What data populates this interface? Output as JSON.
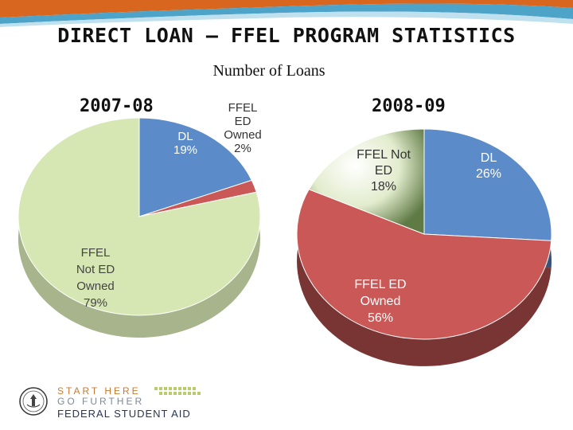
{
  "title": "DIRECT LOAN – FFEL PROGRAM STATISTICS",
  "subtitle": "Number of Loans",
  "colors": {
    "swoosh_orange": "#d8661e",
    "swoosh_blue": "#4ea3c9",
    "dl": "#5b8bc9",
    "ffel_ed_owned": "#c95856",
    "ffel_not_ed": "#d6e7b3",
    "ffel_not_ed_small_red": "#c95856",
    "rim_2007": "#b5c48f"
  },
  "chart_data": [
    {
      "type": "pie",
      "title": "2007-08",
      "slices": [
        {
          "label_lines": [
            "DL",
            "19%"
          ],
          "value": 19,
          "color": "#5b8bc9"
        },
        {
          "label_lines": [
            "FFEL",
            "ED",
            "Owned",
            "2%"
          ],
          "value": 2,
          "color": "#c95856"
        },
        {
          "label_lines": [
            "FFEL",
            "Not ED",
            "Owned",
            "79%"
          ],
          "value": 79,
          "color": "#d6e7b3"
        }
      ]
    },
    {
      "type": "pie",
      "title": "2008-09",
      "slices": [
        {
          "label_lines": [
            "DL",
            "26%"
          ],
          "value": 26,
          "color": "#5b8bc9"
        },
        {
          "label_lines": [
            "FFEL ED",
            "Owned",
            "56%"
          ],
          "value": 56,
          "color": "#c95856"
        },
        {
          "label_lines": [
            "FFEL Not",
            "ED",
            "18%"
          ],
          "value": 18,
          "color": "#d6e7b3"
        }
      ]
    }
  ],
  "footer": {
    "line1": "START HERE",
    "line2": "GO FURTHER",
    "line3": "FEDERAL STUDENT AID",
    "seal_icon": "department-of-education-seal-icon"
  }
}
